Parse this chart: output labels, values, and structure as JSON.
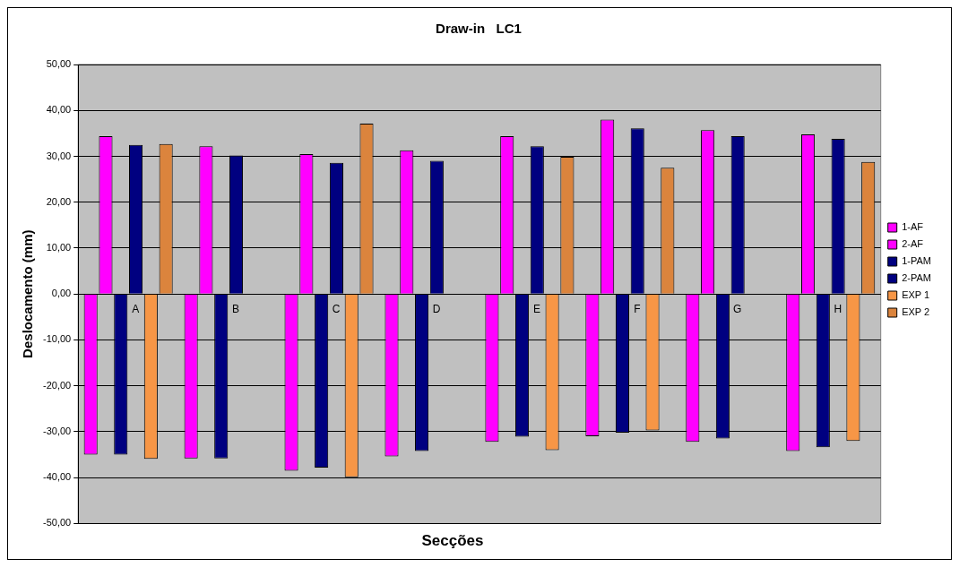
{
  "chart_data": {
    "type": "bar",
    "title": "Draw-in   LC1",
    "xlabel": "Secções",
    "ylabel": "Deslocamento (mm)",
    "categories": [
      "A",
      "B",
      "C",
      "D",
      "E",
      "F",
      "G",
      "H"
    ],
    "series": [
      {
        "name": "1-AF",
        "color": "#ff00ff",
        "values": [
          -35.0,
          -35.8,
          -38.5,
          -35.4,
          -32.2,
          -31.0,
          -32.2,
          -34.2
        ]
      },
      {
        "name": "2-AF",
        "color": "#ff00ff",
        "values": [
          34.4,
          32.2,
          30.5,
          31.3,
          34.4,
          38.0,
          35.7,
          34.8
        ]
      },
      {
        "name": "1-PAM",
        "color": "#000080",
        "values": [
          -35.0,
          -35.8,
          -37.8,
          -34.2,
          -31.1,
          -30.2,
          -31.5,
          -33.4
        ]
      },
      {
        "name": "2-PAM",
        "color": "#000080",
        "values": [
          32.5,
          30.2,
          28.6,
          29.0,
          32.2,
          36.1,
          34.4,
          33.8
        ]
      },
      {
        "name": "EXP 1",
        "color": "#f79646",
        "values": [
          -35.9,
          null,
          -39.9,
          null,
          -34.0,
          -29.7,
          null,
          -32.0
        ]
      },
      {
        "name": "EXP 2",
        "color": "#db843d",
        "values": [
          32.7,
          null,
          37.1,
          null,
          29.9,
          27.5,
          null,
          28.8
        ]
      }
    ],
    "ylim": [
      -50,
      50
    ],
    "yticks": [
      {
        "value": -50,
        "label": "-50,00"
      },
      {
        "value": -40,
        "label": "-40,00"
      },
      {
        "value": -30,
        "label": "-30,00"
      },
      {
        "value": -20,
        "label": "-20,00"
      },
      {
        "value": -10,
        "label": "-10,00"
      },
      {
        "value": 0,
        "label": "0,00"
      },
      {
        "value": 10,
        "label": "10,00"
      },
      {
        "value": 20,
        "label": "20,00"
      },
      {
        "value": 30,
        "label": "30,00"
      },
      {
        "value": 40,
        "label": "40,00"
      },
      {
        "value": 50,
        "label": "50,00"
      }
    ],
    "grid": "y",
    "legend": "right"
  }
}
